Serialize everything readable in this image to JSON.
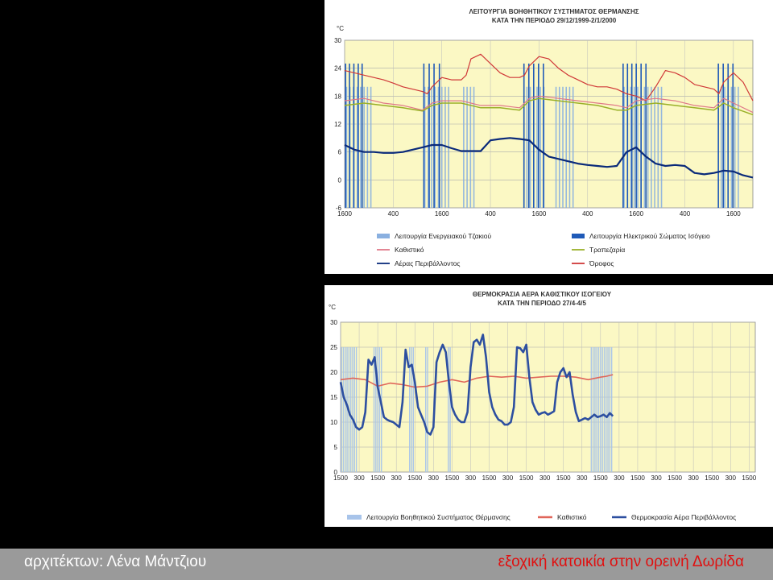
{
  "footer": {
    "left": "αρχιτέκτων: Λένα Μάντζιου",
    "right": "εξοχική κατοικία στην ορεινή Δωρίδα"
  },
  "chart_data": [
    {
      "type": "line",
      "title": "ΛΕΙΤΟΥΡΓΙΑ ΒΟΗΘΗΤΙΚΟΥ ΣΥΣΤΗΜΑΤΟΣ ΘΕΡΜΑΝΣΗΣ",
      "subtitle": "ΚΑΤΑ ΤΗΝ ΠΕΡΙΟΔΟ  29/12/1999-2/1/2000",
      "ylabel": "°C",
      "ylim": [
        -6,
        30
      ],
      "yticks": [
        -6,
        0,
        6,
        12,
        18,
        24,
        30
      ],
      "xlim": [
        0,
        84
      ],
      "xticks": [
        {
          "x": 0,
          "label": "1600"
        },
        {
          "x": 10,
          "label": "400"
        },
        {
          "x": 20,
          "label": "1600"
        },
        {
          "x": 30,
          "label": "400"
        },
        {
          "x": 40,
          "label": "1600"
        },
        {
          "x": 50,
          "label": "400"
        },
        {
          "x": 60,
          "label": "1600"
        },
        {
          "x": 70,
          "label": "400"
        },
        {
          "x": 80,
          "label": "1600"
        }
      ],
      "grid": true,
      "legend": [
        "Λειτουργία Ενεργειακού Τζακιού",
        "Λειτουργία Ηλεκτρικού Σώματος Ισόγειο",
        "Καθιστικό",
        "Τραπεζαρία",
        "Αέρας Περιβάλλοντος",
        "Όροφος"
      ],
      "fireplace_bars": [
        0.4,
        1.1,
        1.8,
        2.6,
        3.3,
        4.0,
        4.7,
        5.4,
        16.5,
        17.2,
        17.9,
        18.6,
        19.3,
        20.0,
        20.7,
        21.4,
        24.5,
        25.2,
        25.9,
        26.6,
        37.5,
        38.2,
        38.9,
        39.6,
        40.3,
        41.0,
        43.5,
        44.2,
        44.9,
        45.6,
        46.3,
        47.0,
        57.5,
        58.2,
        58.9,
        59.6,
        60.3,
        61.0,
        61.7,
        62.4,
        63.1,
        63.8,
        64.5,
        65.2,
        77.5,
        78.2,
        78.9,
        79.6,
        80.3,
        81.0
      ],
      "electric_bars": [
        0.2,
        1.0,
        1.9,
        2.8,
        3.6,
        16.3,
        17.4,
        18.4,
        19.5,
        36.9,
        37.9,
        38.9,
        39.9,
        40.9,
        57.3,
        58.2,
        59.1,
        60.0,
        61.0,
        62.0,
        76.9,
        77.9,
        78.9,
        79.9
      ],
      "series": [
        {
          "name": "Όροφος",
          "color": "#d03838",
          "x": [
            0,
            2,
            4,
            6,
            8,
            10,
            12,
            14,
            16,
            17,
            18,
            20,
            22,
            24,
            25,
            26,
            28,
            30,
            32,
            34,
            36,
            37,
            38,
            40,
            42,
            44,
            46,
            48,
            50,
            52,
            54,
            56,
            57,
            58,
            60,
            62,
            64,
            66,
            68,
            70,
            72,
            74,
            76,
            77,
            78,
            80,
            82,
            84
          ],
          "y": [
            23.5,
            23,
            22.5,
            22,
            21.5,
            20.8,
            20,
            19.5,
            19,
            18.5,
            20,
            22,
            21.5,
            21.5,
            22.5,
            26,
            27,
            25,
            23,
            22,
            22,
            22.5,
            24.5,
            26.5,
            26,
            24,
            22.5,
            21.5,
            20.5,
            20,
            20,
            19.5,
            19,
            18.5,
            18,
            17,
            20,
            23.5,
            23,
            22,
            20.5,
            20,
            19.5,
            18.5,
            21,
            23,
            21,
            17
          ]
        },
        {
          "name": "Καθιστικό",
          "color": "#e07888",
          "x": [
            0,
            4,
            8,
            12,
            16,
            18,
            20,
            24,
            28,
            32,
            36,
            38,
            40,
            44,
            48,
            52,
            56,
            58,
            60,
            64,
            68,
            72,
            76,
            78,
            80,
            84
          ],
          "y": [
            17,
            17.5,
            16.5,
            16,
            15,
            16.5,
            17,
            17,
            16,
            16,
            15.5,
            17.5,
            18,
            17.5,
            17,
            16.5,
            16,
            15.5,
            17,
            17.5,
            17,
            16,
            15.5,
            17.5,
            16.5,
            14.5
          ]
        },
        {
          "name": "Τραπεζαρία",
          "color": "#9ab028",
          "x": [
            0,
            4,
            8,
            12,
            16,
            18,
            20,
            24,
            28,
            32,
            36,
            38,
            40,
            44,
            48,
            52,
            56,
            58,
            60,
            64,
            68,
            72,
            76,
            78,
            80,
            84
          ],
          "y": [
            16,
            16.5,
            16,
            15.5,
            14.8,
            16,
            16.5,
            16.5,
            15.5,
            15.5,
            15,
            17,
            17.5,
            17,
            16.5,
            16,
            15,
            15,
            16,
            16.5,
            16,
            15.5,
            15,
            16.5,
            15.5,
            14
          ]
        },
        {
          "name": "Αέρας Περιβάλλοντος",
          "color": "#0a2a7a",
          "x": [
            0,
            2,
            4,
            6,
            8,
            10,
            12,
            14,
            16,
            18,
            20,
            22,
            24,
            26,
            28,
            30,
            32,
            34,
            36,
            38,
            40,
            42,
            44,
            46,
            48,
            50,
            52,
            54,
            56,
            58,
            60,
            62,
            64,
            66,
            68,
            70,
            72,
            74,
            76,
            78,
            80,
            82,
            84
          ],
          "y": [
            7.5,
            6.5,
            6,
            6,
            5.8,
            5.8,
            6,
            6.5,
            7,
            7.5,
            7.5,
            6.8,
            6.2,
            6.2,
            6.2,
            8.5,
            8.8,
            9,
            8.8,
            8.5,
            6.5,
            5,
            4.5,
            4,
            3.5,
            3.2,
            3,
            2.8,
            3,
            6,
            7,
            5,
            3.5,
            3,
            3.2,
            3,
            1.5,
            1.2,
            1.5,
            2,
            1.8,
            1,
            0.5
          ]
        }
      ]
    },
    {
      "type": "line",
      "title": "ΘΕΡΜΟΚΡΑΣΙΑ ΑΕΡΑ ΚΑΘΙΣΤΙΚΟΥ ΙΣΟΓΕΙΟΥ",
      "subtitle": "ΚΑΤΑ  ΤΗΝ ΠΕΡΙΟΔΟ 27/4-4/5",
      "ylabel": "°C",
      "ylim": [
        0,
        30
      ],
      "yticks": [
        0,
        5,
        10,
        15,
        20,
        25,
        30
      ],
      "xlim": [
        0,
        134
      ],
      "xticks": [
        {
          "x": 0,
          "label": "1500"
        },
        {
          "x": 6,
          "label": "300"
        },
        {
          "x": 12,
          "label": "1500"
        },
        {
          "x": 18,
          "label": "300"
        },
        {
          "x": 24,
          "label": "1500"
        },
        {
          "x": 30,
          "label": "300"
        },
        {
          "x": 36,
          "label": "1500"
        },
        {
          "x": 42,
          "label": "300"
        },
        {
          "x": 48,
          "label": "1500"
        },
        {
          "x": 54,
          "label": "300"
        },
        {
          "x": 60,
          "label": "1500"
        },
        {
          "x": 66,
          "label": "300"
        },
        {
          "x": 72,
          "label": "1500"
        },
        {
          "x": 78,
          "label": "300"
        },
        {
          "x": 84,
          "label": "1500"
        },
        {
          "x": 90,
          "label": "300"
        },
        {
          "x": 96,
          "label": "1500"
        },
        {
          "x": 102,
          "label": "300"
        },
        {
          "x": 108,
          "label": "1500"
        },
        {
          "x": 114,
          "label": "300"
        },
        {
          "x": 120,
          "label": "1500"
        },
        {
          "x": 126,
          "label": "300"
        },
        {
          "x": 132,
          "label": "1500"
        },
        {
          "x": 138,
          "label": "300"
        }
      ],
      "grid": true,
      "legend": [
        "Λειτουργία Βοηθητικού Συστήματος Θέρμανσης",
        "Καθιστικό",
        "Θερμοκρασία Αέρα Περιβάλλοντος"
      ],
      "aux_heating_bars": [
        0.3,
        0.9,
        1.5,
        2.1,
        2.7,
        3.3,
        3.9,
        4.5,
        5.1,
        10.8,
        11.4,
        12.0,
        12.6,
        13.2,
        22.3,
        22.9,
        23.5,
        27.5,
        28.1,
        34.8,
        35.4,
        81.0,
        81.6,
        82.2,
        82.8,
        83.4,
        84.0,
        84.6,
        85.2,
        85.8,
        86.4,
        87.0,
        87.6
      ],
      "series": [
        {
          "name": "Καθιστικό",
          "color": "#e0665a",
          "x": [
            0,
            4,
            8,
            12,
            16,
            20,
            24,
            28,
            32,
            36,
            40,
            44,
            48,
            52,
            56,
            60,
            64,
            68,
            72,
            76,
            80,
            84,
            86,
            88
          ],
          "y": [
            18.5,
            18.8,
            18.5,
            17.2,
            17.8,
            17.5,
            17,
            17.2,
            18,
            18.5,
            18,
            18.8,
            19.2,
            19,
            19.2,
            18.8,
            19,
            19.2,
            19.2,
            19,
            18.5,
            19,
            19.2,
            19.5
          ]
        },
        {
          "name": "Θερμοκρασία Αέρα Περιβάλλοντος",
          "color": "#2d4fa0",
          "x": [
            0,
            1,
            2,
            3,
            4,
            5,
            6,
            7,
            8,
            9,
            10,
            11,
            12,
            13,
            14,
            15,
            16,
            17,
            18,
            19,
            20,
            21,
            22,
            23,
            24,
            25,
            26,
            27,
            28,
            29,
            30,
            31,
            32,
            33,
            34,
            35,
            36,
            37,
            38,
            39,
            40,
            41,
            42,
            43,
            44,
            45,
            46,
            47,
            48,
            49,
            50,
            51,
            52,
            53,
            54,
            55,
            56,
            57,
            58,
            59,
            60,
            61,
            62,
            63,
            64,
            65,
            66,
            67,
            68,
            69,
            70,
            71,
            72,
            73,
            74,
            75,
            76,
            77,
            78,
            79,
            80,
            81,
            82,
            83,
            84,
            85,
            86,
            87,
            88
          ],
          "y": [
            18,
            15,
            13.5,
            11.5,
            10.5,
            9,
            8.5,
            9,
            12,
            22.5,
            21.5,
            23,
            17,
            14,
            11,
            10.5,
            10.2,
            10,
            9.5,
            9,
            14,
            24.5,
            21,
            21.5,
            18,
            13,
            11.5,
            10,
            8,
            7.5,
            9,
            22,
            24,
            25.5,
            24,
            18,
            13,
            11.5,
            10.5,
            10,
            10,
            12,
            21,
            26,
            26.5,
            25.5,
            27.5,
            23,
            16,
            13,
            11.5,
            10.5,
            10.2,
            9.5,
            9.5,
            10,
            13,
            25,
            24.8,
            24,
            25.5,
            19,
            14,
            12.5,
            11.5,
            11.8,
            12,
            11.5,
            11.8,
            12.2,
            18,
            20,
            20.8,
            19,
            20,
            15.5,
            12,
            10.2,
            10.5,
            10.8,
            10.5,
            11,
            11.5,
            11,
            11.2,
            11.5,
            11,
            11.8,
            11.2
          ]
        }
      ]
    }
  ]
}
